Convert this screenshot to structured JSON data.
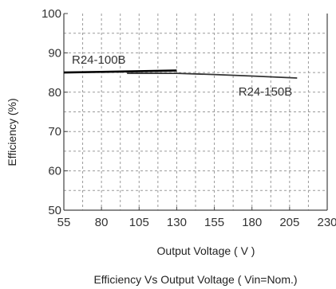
{
  "chart_data": {
    "type": "line",
    "caption": "Efficiency  Vs Output Voltage ( Vin=Nom.)",
    "xlabel": "Output Voltage ( V )",
    "ylabel": "Efficiency (%)",
    "xlim": [
      55,
      230
    ],
    "ylim": [
      50,
      100
    ],
    "xticks": [
      55,
      80,
      105,
      130,
      155,
      180,
      205,
      230
    ],
    "yticks": [
      50,
      60,
      70,
      80,
      90,
      100
    ],
    "grid": true,
    "series": [
      {
        "name": "R24-100B",
        "x": [
          55,
          130
        ],
        "y": [
          85,
          85.5
        ],
        "color": "#000000"
      },
      {
        "name": "R24-150B",
        "x": [
          97,
          130,
          155,
          180,
          210
        ],
        "y": [
          84.8,
          84.8,
          84.5,
          84.1,
          83.6
        ],
        "color": "#333333"
      }
    ]
  }
}
